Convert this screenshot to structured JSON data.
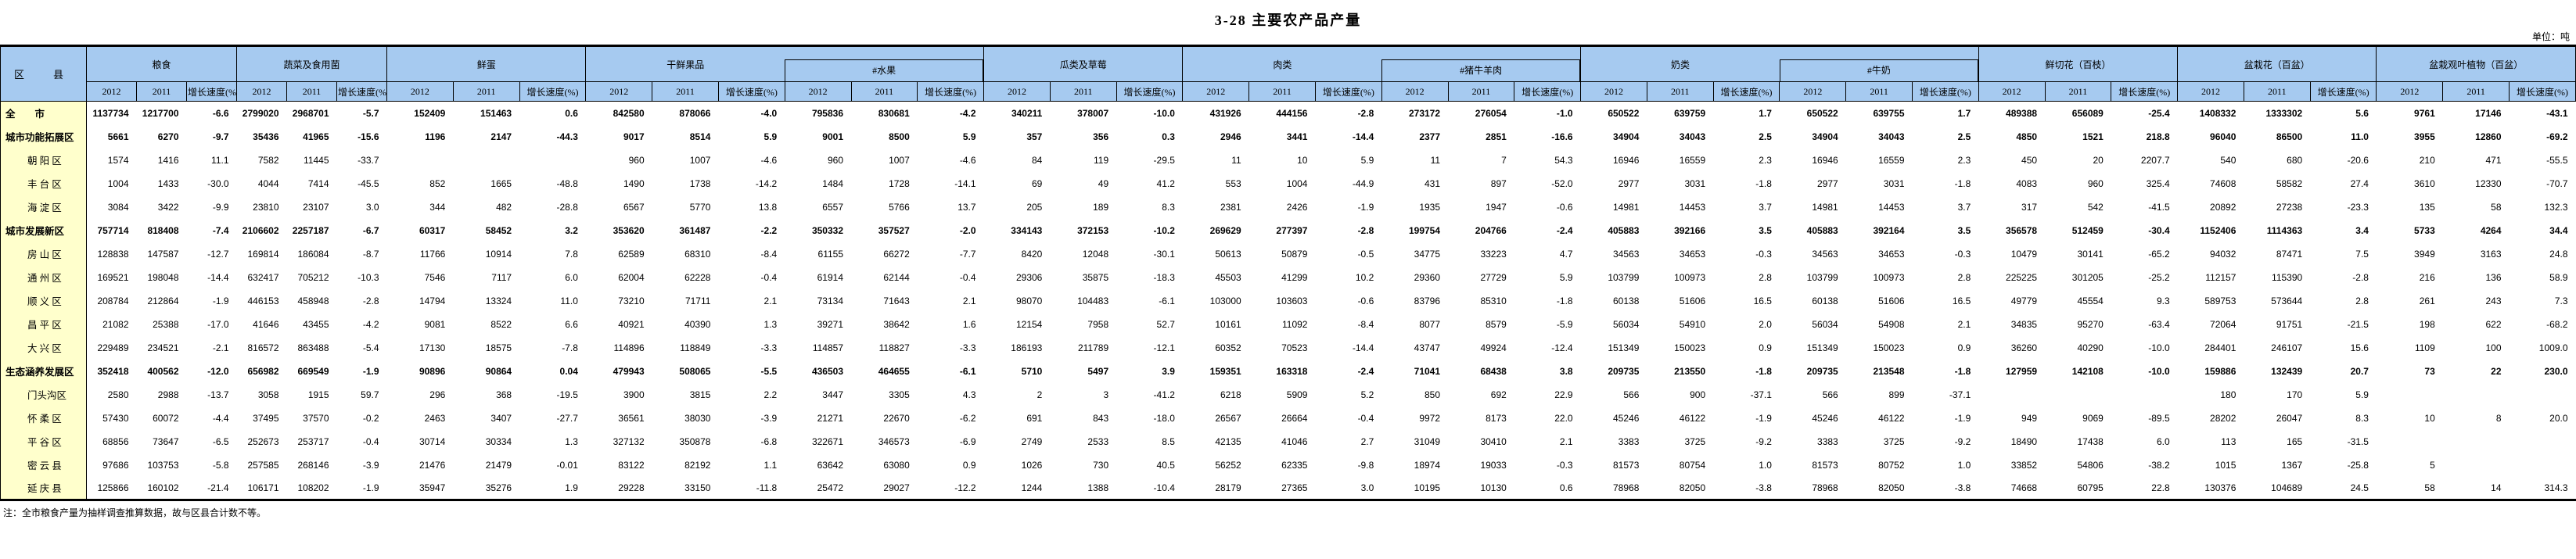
{
  "title": "3-28  主要农产品产量",
  "unit_label": "单位：吨",
  "note": "注：全市粮食产量为抽样调查推算数据，故与区县合计数不等。",
  "colors": {
    "header_bg": "#a6caf0",
    "stub_bg": "#ffffcc",
    "border": "#000000"
  },
  "table": {
    "stub_header": "区　县",
    "year_headers": [
      "2012",
      "2011",
      "增长速度(%)"
    ],
    "groups": [
      {
        "label": "粮食"
      },
      {
        "label": "蔬菜及食用菌"
      },
      {
        "label": "鲜蛋"
      },
      {
        "label": "干鲜果品",
        "hasub": true
      },
      {
        "label": "#水果",
        "sub": true
      },
      {
        "label": "瓜类及草莓"
      },
      {
        "label": "肉类",
        "hasub": true
      },
      {
        "label": "#猪牛羊肉",
        "sub": true
      },
      {
        "label": "奶类",
        "hasub": true
      },
      {
        "label": "#牛奶",
        "sub": true
      },
      {
        "label": "鲜切花（百枝）"
      },
      {
        "label": "盆栽花（百盆）"
      },
      {
        "label": "盆栽观叶植物（百盆）"
      }
    ],
    "rows": [
      {
        "label": "全　　市",
        "bold": true,
        "values": [
          "1137734",
          "1217700",
          "-6.6",
          "2799020",
          "2968701",
          "-5.7",
          "152409",
          "151463",
          "0.6",
          "842580",
          "878066",
          "-4.0",
          "795836",
          "830681",
          "-4.2",
          "340211",
          "378007",
          "-10.0",
          "431926",
          "444156",
          "-2.8",
          "273172",
          "276054",
          "-1.0",
          "650522",
          "639759",
          "1.7",
          "650522",
          "639755",
          "1.7",
          "489388",
          "656089",
          "-25.4",
          "1408332",
          "1333302",
          "5.6",
          "9761",
          "17146",
          "-43.1"
        ]
      },
      {
        "label": "城市功能拓展区",
        "bold": true,
        "values": [
          "5661",
          "6270",
          "-9.7",
          "35436",
          "41965",
          "-15.6",
          "1196",
          "2147",
          "-44.3",
          "9017",
          "8514",
          "5.9",
          "9001",
          "8500",
          "5.9",
          "357",
          "356",
          "0.3",
          "2946",
          "3441",
          "-14.4",
          "2377",
          "2851",
          "-16.6",
          "34904",
          "34043",
          "2.5",
          "34904",
          "34043",
          "2.5",
          "4850",
          "1521",
          "218.8",
          "96040",
          "86500",
          "11.0",
          "3955",
          "12860",
          "-69.2"
        ]
      },
      {
        "label": "朝 阳 区",
        "bold": false,
        "values": [
          "1574",
          "1416",
          "11.1",
          "7582",
          "11445",
          "-33.7",
          "",
          "",
          "",
          "960",
          "1007",
          "-4.6",
          "960",
          "1007",
          "-4.6",
          "84",
          "119",
          "-29.5",
          "11",
          "10",
          "5.9",
          "11",
          "7",
          "54.3",
          "16946",
          "16559",
          "2.3",
          "16946",
          "16559",
          "2.3",
          "450",
          "20",
          "2207.7",
          "540",
          "680",
          "-20.6",
          "210",
          "471",
          "-55.5"
        ]
      },
      {
        "label": "丰 台 区",
        "bold": false,
        "values": [
          "1004",
          "1433",
          "-30.0",
          "4044",
          "7414",
          "-45.5",
          "852",
          "1665",
          "-48.8",
          "1490",
          "1738",
          "-14.2",
          "1484",
          "1728",
          "-14.1",
          "69",
          "49",
          "41.2",
          "553",
          "1004",
          "-44.9",
          "431",
          "897",
          "-52.0",
          "2977",
          "3031",
          "-1.8",
          "2977",
          "3031",
          "-1.8",
          "4083",
          "960",
          "325.4",
          "74608",
          "58582",
          "27.4",
          "3610",
          "12330",
          "-70.7"
        ]
      },
      {
        "label": "海 淀 区",
        "bold": false,
        "values": [
          "3084",
          "3422",
          "-9.9",
          "23810",
          "23107",
          "3.0",
          "344",
          "482",
          "-28.8",
          "6567",
          "5770",
          "13.8",
          "6557",
          "5766",
          "13.7",
          "205",
          "189",
          "8.3",
          "2381",
          "2426",
          "-1.9",
          "1935",
          "1947",
          "-0.6",
          "14981",
          "14453",
          "3.7",
          "14981",
          "14453",
          "3.7",
          "317",
          "542",
          "-41.5",
          "20892",
          "27238",
          "-23.3",
          "135",
          "58",
          "132.3"
        ]
      },
      {
        "label": "城市发展新区",
        "bold": true,
        "values": [
          "757714",
          "818408",
          "-7.4",
          "2106602",
          "2257187",
          "-6.7",
          "60317",
          "58452",
          "3.2",
          "353620",
          "361487",
          "-2.2",
          "350332",
          "357527",
          "-2.0",
          "334143",
          "372153",
          "-10.2",
          "269629",
          "277397",
          "-2.8",
          "199754",
          "204766",
          "-2.4",
          "405883",
          "392166",
          "3.5",
          "405883",
          "392164",
          "3.5",
          "356578",
          "512459",
          "-30.4",
          "1152406",
          "1114363",
          "3.4",
          "5733",
          "4264",
          "34.4"
        ]
      },
      {
        "label": "房 山 区",
        "bold": false,
        "values": [
          "128838",
          "147587",
          "-12.7",
          "169814",
          "186084",
          "-8.7",
          "11766",
          "10914",
          "7.8",
          "62589",
          "68310",
          "-8.4",
          "61155",
          "66272",
          "-7.7",
          "8420",
          "12048",
          "-30.1",
          "50613",
          "50879",
          "-0.5",
          "34775",
          "33223",
          "4.7",
          "34563",
          "34653",
          "-0.3",
          "34563",
          "34653",
          "-0.3",
          "10479",
          "30141",
          "-65.2",
          "94032",
          "87471",
          "7.5",
          "3949",
          "3163",
          "24.8"
        ]
      },
      {
        "label": "通 州 区",
        "bold": false,
        "values": [
          "169521",
          "198048",
          "-14.4",
          "632417",
          "705212",
          "-10.3",
          "7546",
          "7117",
          "6.0",
          "62004",
          "62228",
          "-0.4",
          "61914",
          "62144",
          "-0.4",
          "29306",
          "35875",
          "-18.3",
          "45503",
          "41299",
          "10.2",
          "29360",
          "27729",
          "5.9",
          "103799",
          "100973",
          "2.8",
          "103799",
          "100973",
          "2.8",
          "225225",
          "301205",
          "-25.2",
          "112157",
          "115390",
          "-2.8",
          "216",
          "136",
          "58.9"
        ]
      },
      {
        "label": "顺 义 区",
        "bold": false,
        "values": [
          "208784",
          "212864",
          "-1.9",
          "446153",
          "458948",
          "-2.8",
          "14794",
          "13324",
          "11.0",
          "73210",
          "71711",
          "2.1",
          "73134",
          "71643",
          "2.1",
          "98070",
          "104483",
          "-6.1",
          "103000",
          "103603",
          "-0.6",
          "83796",
          "85310",
          "-1.8",
          "60138",
          "51606",
          "16.5",
          "60138",
          "51606",
          "16.5",
          "49779",
          "45554",
          "9.3",
          "589753",
          "573644",
          "2.8",
          "261",
          "243",
          "7.3"
        ]
      },
      {
        "label": "昌 平 区",
        "bold": false,
        "values": [
          "21082",
          "25388",
          "-17.0",
          "41646",
          "43455",
          "-4.2",
          "9081",
          "8522",
          "6.6",
          "40921",
          "40390",
          "1.3",
          "39271",
          "38642",
          "1.6",
          "12154",
          "7958",
          "52.7",
          "10161",
          "11092",
          "-8.4",
          "8077",
          "8579",
          "-5.9",
          "56034",
          "54910",
          "2.0",
          "56034",
          "54908",
          "2.1",
          "34835",
          "95270",
          "-63.4",
          "72064",
          "91751",
          "-21.5",
          "198",
          "622",
          "-68.2"
        ]
      },
      {
        "label": "大 兴 区",
        "bold": false,
        "values": [
          "229489",
          "234521",
          "-2.1",
          "816572",
          "863488",
          "-5.4",
          "17130",
          "18575",
          "-7.8",
          "114896",
          "118849",
          "-3.3",
          "114857",
          "118827",
          "-3.3",
          "186193",
          "211789",
          "-12.1",
          "60352",
          "70523",
          "-14.4",
          "43747",
          "49924",
          "-12.4",
          "151349",
          "150023",
          "0.9",
          "151349",
          "150023",
          "0.9",
          "36260",
          "40290",
          "-10.0",
          "284401",
          "246107",
          "15.6",
          "1109",
          "100",
          "1009.0"
        ]
      },
      {
        "label": "生态涵养发展区",
        "bold": true,
        "values": [
          "352418",
          "400562",
          "-12.0",
          "656982",
          "669549",
          "-1.9",
          "90896",
          "90864",
          "0.04",
          "479943",
          "508065",
          "-5.5",
          "436503",
          "464655",
          "-6.1",
          "5710",
          "5497",
          "3.9",
          "159351",
          "163318",
          "-2.4",
          "71041",
          "68438",
          "3.8",
          "209735",
          "213550",
          "-1.8",
          "209735",
          "213548",
          "-1.8",
          "127959",
          "142108",
          "-10.0",
          "159886",
          "132439",
          "20.7",
          "73",
          "22",
          "230.0"
        ]
      },
      {
        "label": "门头沟区",
        "bold": false,
        "values": [
          "2580",
          "2988",
          "-13.7",
          "3058",
          "1915",
          "59.7",
          "296",
          "368",
          "-19.5",
          "3900",
          "3815",
          "2.2",
          "3447",
          "3305",
          "4.3",
          "2",
          "3",
          "-41.2",
          "6218",
          "5909",
          "5.2",
          "850",
          "692",
          "22.9",
          "566",
          "900",
          "-37.1",
          "566",
          "899",
          "-37.1",
          "",
          "",
          "",
          "180",
          "170",
          "5.9",
          "",
          "",
          ""
        ]
      },
      {
        "label": "怀 柔 区",
        "bold": false,
        "values": [
          "57430",
          "60072",
          "-4.4",
          "37495",
          "37570",
          "-0.2",
          "2463",
          "3407",
          "-27.7",
          "36561",
          "38030",
          "-3.9",
          "21271",
          "22670",
          "-6.2",
          "691",
          "843",
          "-18.0",
          "26567",
          "26664",
          "-0.4",
          "9972",
          "8173",
          "22.0",
          "45246",
          "46122",
          "-1.9",
          "45246",
          "46122",
          "-1.9",
          "949",
          "9069",
          "-89.5",
          "28202",
          "26047",
          "8.3",
          "10",
          "8",
          "20.0"
        ]
      },
      {
        "label": "平 谷 区",
        "bold": false,
        "values": [
          "68856",
          "73647",
          "-6.5",
          "252673",
          "253717",
          "-0.4",
          "30714",
          "30334",
          "1.3",
          "327132",
          "350878",
          "-6.8",
          "322671",
          "346573",
          "-6.9",
          "2749",
          "2533",
          "8.5",
          "42135",
          "41046",
          "2.7",
          "31049",
          "30410",
          "2.1",
          "3383",
          "3725",
          "-9.2",
          "3383",
          "3725",
          "-9.2",
          "18490",
          "17438",
          "6.0",
          "113",
          "165",
          "-31.5",
          "",
          "",
          ""
        ]
      },
      {
        "label": "密 云 县",
        "bold": false,
        "values": [
          "97686",
          "103753",
          "-5.8",
          "257585",
          "268146",
          "-3.9",
          "21476",
          "21479",
          "-0.01",
          "83122",
          "82192",
          "1.1",
          "63642",
          "63080",
          "0.9",
          "1026",
          "730",
          "40.5",
          "56252",
          "62335",
          "-9.8",
          "18974",
          "19033",
          "-0.3",
          "81573",
          "80754",
          "1.0",
          "81573",
          "80752",
          "1.0",
          "33852",
          "54806",
          "-38.2",
          "1015",
          "1367",
          "-25.8",
          "5",
          "",
          ""
        ]
      },
      {
        "label": "延 庆 县",
        "bold": false,
        "values": [
          "125866",
          "160102",
          "-21.4",
          "106171",
          "108202",
          "-1.9",
          "35947",
          "35276",
          "1.9",
          "29228",
          "33150",
          "-11.8",
          "25472",
          "29027",
          "-12.2",
          "1244",
          "1388",
          "-10.4",
          "28179",
          "27365",
          "3.0",
          "10195",
          "10130",
          "0.6",
          "78968",
          "82050",
          "-3.8",
          "78968",
          "82050",
          "-3.8",
          "74668",
          "60795",
          "22.8",
          "130376",
          "104689",
          "24.5",
          "58",
          "14",
          "314.3"
        ]
      }
    ]
  }
}
